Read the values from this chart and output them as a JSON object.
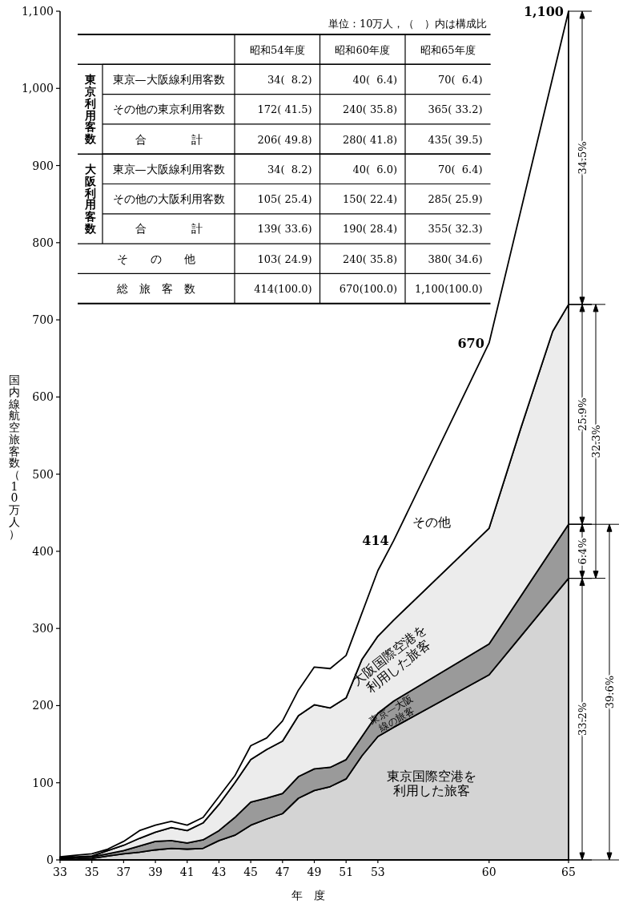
{
  "chart_data": [
    {
      "type": "area",
      "stacked": true,
      "xlabel": "年　度",
      "ylabel": "国内線航空旅客数（10万人）",
      "x": [
        33,
        34,
        35,
        36,
        37,
        38,
        39,
        40,
        41,
        42,
        43,
        44,
        45,
        46,
        47,
        48,
        49,
        50,
        51,
        52,
        53,
        54,
        60,
        62,
        64,
        65
      ],
      "xlim": [
        33,
        65
      ],
      "ylim": [
        0,
        1100
      ],
      "xticks": [
        33,
        35,
        37,
        39,
        41,
        43,
        45,
        47,
        49,
        51,
        53,
        60,
        65
      ],
      "yticks": [
        0,
        100,
        200,
        300,
        400,
        500,
        600,
        700,
        800,
        900,
        {
          "value": 1000,
          "label": "1,000"
        },
        {
          "value": 1100,
          "label": "1,100"
        }
      ],
      "series": [
        {
          "name": "東京国際空港を利用した旅客",
          "color": "#d4d4d4",
          "values": [
            1,
            1,
            2,
            5,
            8,
            10,
            13,
            15,
            14,
            15,
            25,
            32,
            45,
            53,
            60,
            80,
            90,
            95,
            105,
            135,
            160,
            172,
            240,
            290,
            340,
            365
          ]
        },
        {
          "name": "東京—大阪線の旅客",
          "color": "#9a9a9a",
          "values": [
            1,
            2,
            2,
            3,
            4,
            8,
            11,
            10,
            8,
            11,
            13,
            23,
            30,
            27,
            26,
            28,
            28,
            25,
            25,
            25,
            30,
            34,
            40,
            52,
            64,
            70
          ]
        },
        {
          "name": "大阪国際空港を利用した旅客",
          "color": "#ececec",
          "values": [
            1,
            1,
            1,
            4,
            7,
            10,
            12,
            17,
            16,
            22,
            34,
            45,
            55,
            63,
            68,
            79,
            83,
            77,
            80,
            100,
            100,
            105,
            150,
            218,
            281,
            285
          ]
        },
        {
          "name": "その他",
          "color": "#ffffff",
          "values": [
            1,
            2,
            3,
            2,
            5,
            10,
            9,
            8,
            7,
            7,
            10,
            9,
            18,
            15,
            26,
            33,
            49,
            51,
            55,
            60,
            85,
            103,
            240,
            282,
            329,
            380
          ]
        }
      ],
      "annotations": [
        {
          "text": "414",
          "x": 54,
          "y": 414
        },
        {
          "text": "670",
          "x": 60,
          "y": 670
        },
        {
          "text": "1,100",
          "x": 65,
          "y": 1100
        },
        "34.5%",
        "25.9%",
        "6.4%",
        "33.2%",
        "32.3%",
        "39.6%"
      ]
    },
    {
      "type": "other",
      "title": "単位：10万人，（　）内は構成比",
      "categories": [
        "昭和54年度",
        "昭和60年度",
        "昭和65年度"
      ],
      "y_categories": [
        "東京—大阪線利用客数",
        "その他の東京利用客数",
        "合　　　　計",
        "東京—大阪線利用客数",
        "その他の大阪利用客数",
        "合　　　　計",
        "そ　　の　　他",
        "総　旅　客　数"
      ],
      "y2_categories": [
        "東京利用客数",
        null,
        null,
        "大阪利用客数",
        null,
        null,
        null,
        null
      ],
      "cell_labels": [
        [
          "34(  8.2)",
          "40(  6.4)",
          "70(  6.4)"
        ],
        [
          "172( 41.5)",
          "240( 35.8)",
          "365( 33.2)"
        ],
        [
          "206( 49.8)",
          "280( 41.8)",
          "435( 39.5)"
        ],
        [
          "34(  8.2)",
          "40(  6.0)",
          "70(  6.4)"
        ],
        [
          "105( 25.4)",
          "150( 22.4)",
          "285( 25.9)"
        ],
        [
          "139( 33.6)",
          "190( 28.4)",
          "355( 32.3)"
        ],
        [
          "103( 24.9)",
          "240( 35.8)",
          "380( 34.6)"
        ],
        [
          "414(100.0)",
          "670(100.0)",
          "1,100(100.0)"
        ]
      ]
    }
  ]
}
